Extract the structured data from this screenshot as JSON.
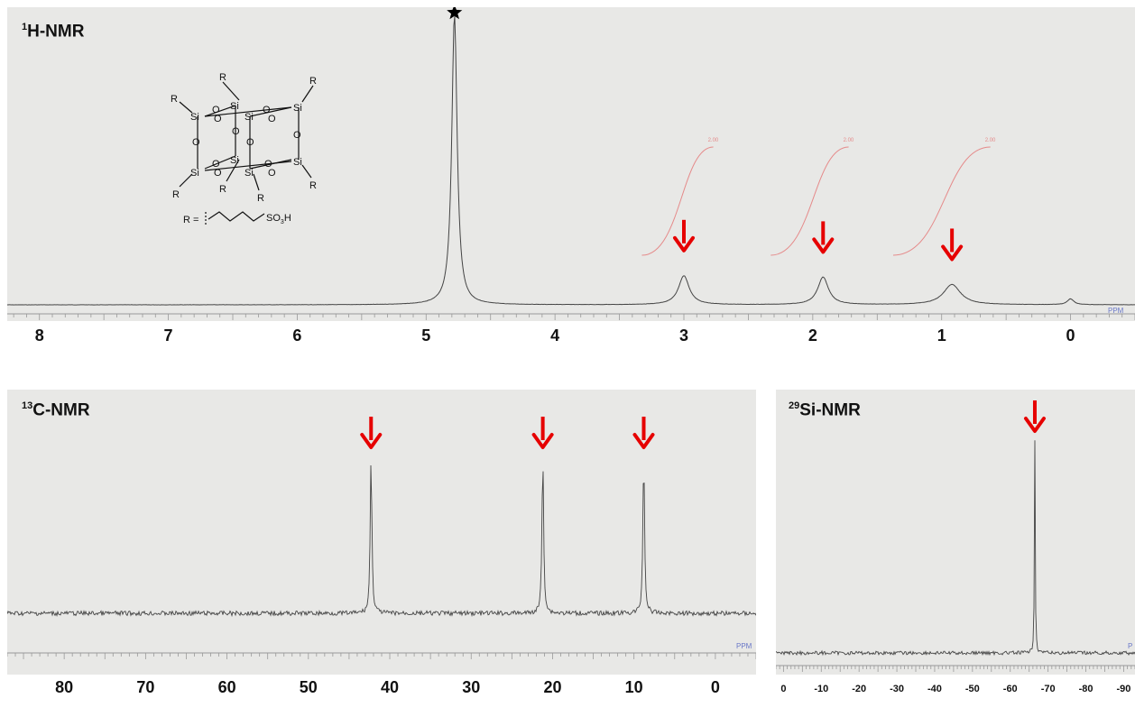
{
  "colors": {
    "paper": "#e8e8e6",
    "paper_edge": "#d6d6d4",
    "trace": "#444444",
    "integral": "#e58a8a",
    "arrow": "#e60000",
    "ppm_text": "#6a78c8"
  },
  "chart_data": [
    {
      "type": "line",
      "title_sup": "1",
      "title": "H-NMR",
      "xlabel": "",
      "ylabel": "",
      "axis_unit_label": "PPM",
      "x_reversed": true,
      "xlim": [
        8.25,
        -0.5
      ],
      "ylim": [
        0,
        100
      ],
      "x_ticks": [
        8,
        7,
        6,
        5,
        4,
        3,
        2,
        1,
        0
      ],
      "peaks": [
        {
          "shift": 4.78,
          "height": 100,
          "width": 0.025,
          "marker": "star"
        },
        {
          "shift": 3.0,
          "height": 10,
          "width": 0.05,
          "marker": "arrow"
        },
        {
          "shift": 1.92,
          "height": 9.5,
          "width": 0.05,
          "marker": "arrow"
        },
        {
          "shift": 0.92,
          "height": 7,
          "width": 0.08,
          "marker": "arrow"
        },
        {
          "shift": 0.0,
          "height": 2,
          "width": 0.03,
          "marker": "none"
        }
      ],
      "integrals": [
        {
          "start": 3.2,
          "end": 2.8,
          "label": "2.00"
        },
        {
          "start": 2.2,
          "end": 1.75,
          "label": "2.00"
        },
        {
          "start": 1.25,
          "end": 0.65,
          "label": "2.00"
        }
      ],
      "structure": {
        "atom_si": "Si",
        "atom_o": "O",
        "substituent": "R",
        "r_definition_prefix": "R =",
        "r_definition_group": "SO",
        "r_definition_sub": "3",
        "r_definition_suffix": "H"
      }
    },
    {
      "type": "line",
      "title_sup": "13",
      "title": "C-NMR",
      "xlabel": "",
      "ylabel": "",
      "axis_unit_label": "PPM",
      "x_reversed": true,
      "xlim": [
        87,
        -5
      ],
      "ylim": [
        0,
        100
      ],
      "x_ticks": [
        80,
        70,
        60,
        50,
        40,
        30,
        20,
        10,
        0
      ],
      "peaks": [
        {
          "shift": 42.3,
          "height": 100,
          "marker": "arrow"
        },
        {
          "shift": 21.2,
          "height": 100,
          "marker": "arrow"
        },
        {
          "shift": 8.8,
          "height": 100,
          "marker": "arrow"
        }
      ]
    },
    {
      "type": "line",
      "title_sup": "29",
      "title": "Si-NMR",
      "xlabel": "",
      "ylabel": "",
      "axis_unit_label": "P",
      "x_reversed": true,
      "xlim": [
        2,
        -93
      ],
      "ylim": [
        0,
        100
      ],
      "x_ticks": [
        0,
        -10,
        -20,
        -30,
        -40,
        -50,
        -60,
        -70,
        -80,
        -90
      ],
      "peaks": [
        {
          "shift": -66.5,
          "height": 100,
          "marker": "arrow"
        }
      ]
    }
  ]
}
